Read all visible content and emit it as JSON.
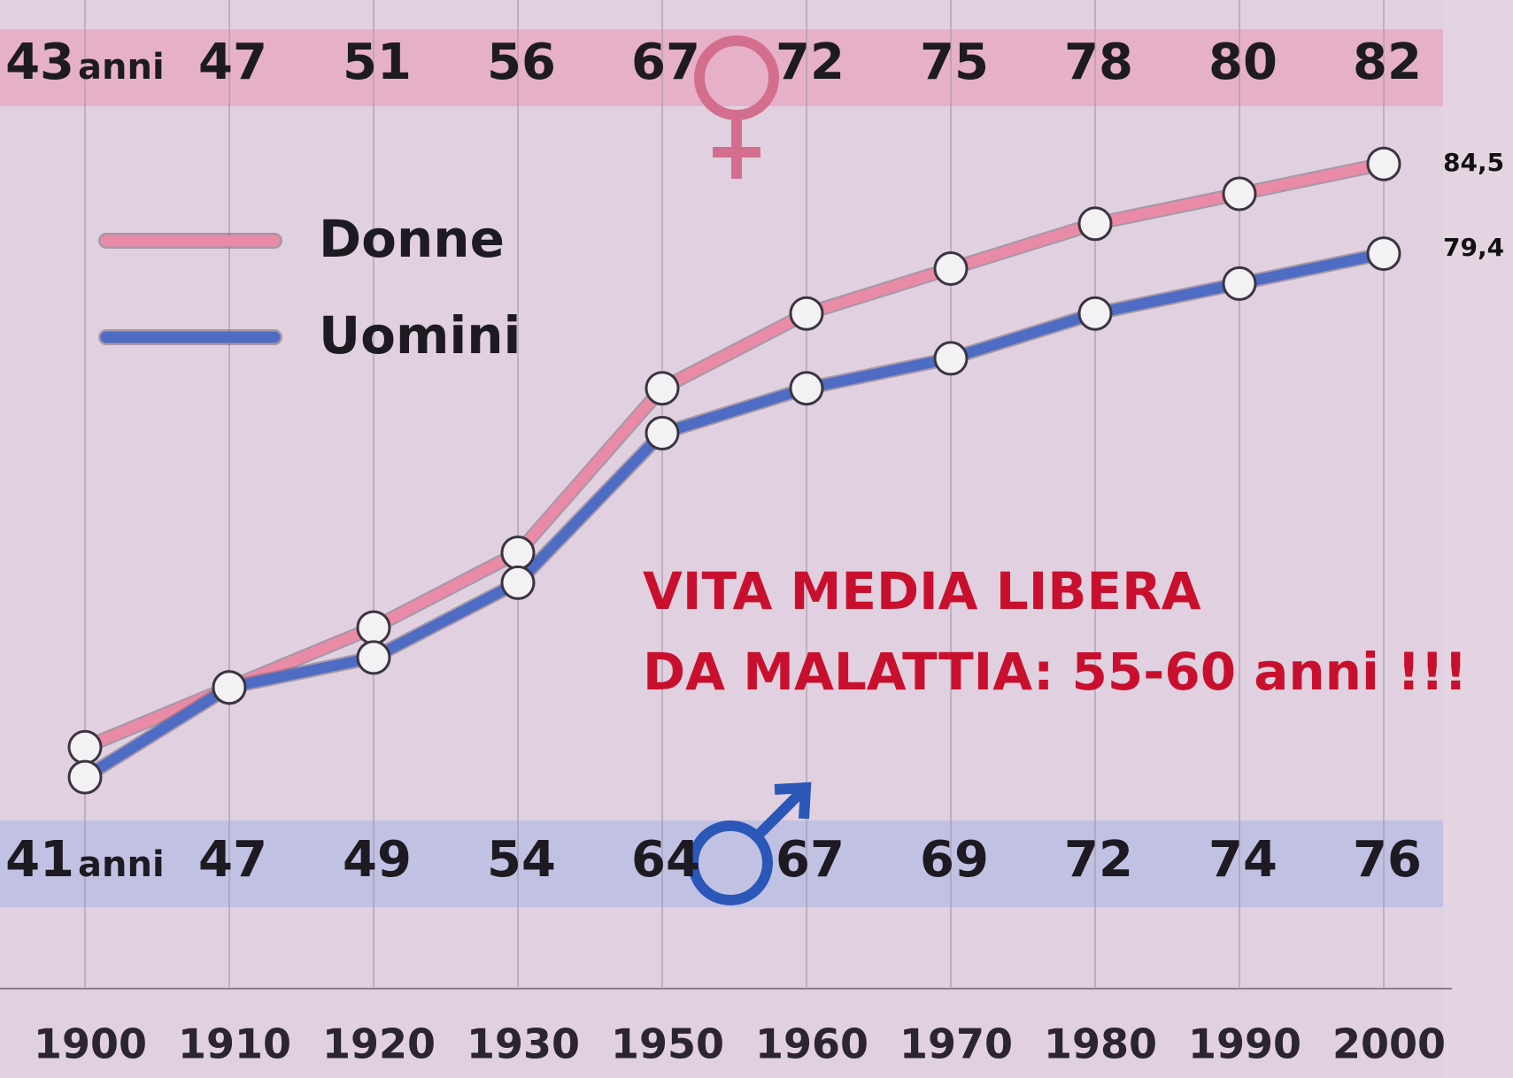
{
  "chart_data": {
    "type": "line",
    "categories": [
      "1900",
      "1910",
      "1920",
      "1930",
      "1950",
      "1960",
      "1970",
      "1980",
      "1990",
      "2000"
    ],
    "series": [
      {
        "name": "Donne",
        "color": "#e98aa6",
        "band_color": "#e7a9c2",
        "values": [
          43,
          47,
          51,
          56,
          67,
          72,
          75,
          78,
          80,
          82
        ]
      },
      {
        "name": "Uomini",
        "color": "#4f6cc4",
        "band_color": "#b9bde3",
        "values": [
          41,
          47,
          49,
          54,
          64,
          67,
          69,
          72,
          74,
          76
        ]
      }
    ],
    "unit": "anni",
    "end_labels": [
      "84,5",
      "79,4"
    ],
    "annotation": [
      "VITA MEDIA LIBERA",
      "DA MALATTIA: 55-60 anni !!!"
    ],
    "ylim": [
      30,
      90
    ],
    "grid": true
  }
}
